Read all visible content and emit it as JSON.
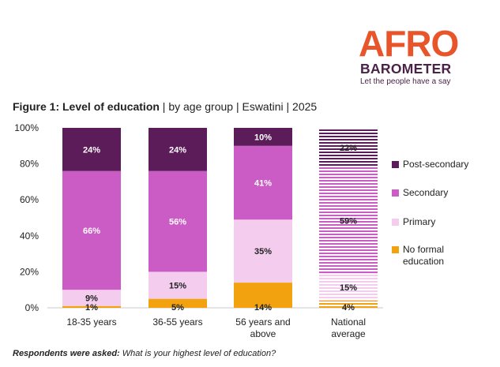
{
  "logo": {
    "word1": "AFRO",
    "word2": "BAROMETER",
    "tagline": "Let the people have a say"
  },
  "title": {
    "main": "Figure 1: Level of education",
    "rest": " | by age group | Eswatini | 2025"
  },
  "footnote": {
    "question_label": "Respondents were asked:",
    "question_text": " What is your highest level of education?"
  },
  "chart_data": {
    "type": "bar",
    "stacked": true,
    "categories": [
      [
        "18-35 years"
      ],
      [
        "36-55 years"
      ],
      [
        "56 years and",
        "above"
      ],
      [
        "National",
        "average"
      ]
    ],
    "series": [
      {
        "name": "No formal education",
        "legend_lines": [
          "No formal",
          "education"
        ],
        "color": "#f3a20f",
        "values": [
          1,
          5,
          14,
          4
        ]
      },
      {
        "name": "Primary",
        "legend_lines": [
          "Primary"
        ],
        "color": "#f4cdee",
        "values": [
          9,
          15,
          35,
          15
        ]
      },
      {
        "name": "Secondary",
        "legend_lines": [
          "Secondary"
        ],
        "color": "#cc5cc5",
        "values": [
          66,
          56,
          41,
          59
        ]
      },
      {
        "name": "Post-secondary",
        "legend_lines": [
          "Post-secondary"
        ],
        "color": "#5c1c59",
        "values": [
          24,
          24,
          10,
          22
        ]
      }
    ],
    "data_labels": [
      [
        "1%",
        "9%",
        "66%",
        "24%"
      ],
      [
        "5%",
        "15%",
        "56%",
        "24%"
      ],
      [
        "14%",
        "35%",
        "41%",
        "10%"
      ],
      [
        "4%",
        "15%",
        "59%",
        "22%"
      ]
    ],
    "hatched_category": 3,
    "y_ticks": [
      "0%",
      "20%",
      "40%",
      "60%",
      "80%",
      "100%"
    ],
    "ylim": [
      0,
      100
    ],
    "grid": false,
    "legend_position": "right"
  }
}
